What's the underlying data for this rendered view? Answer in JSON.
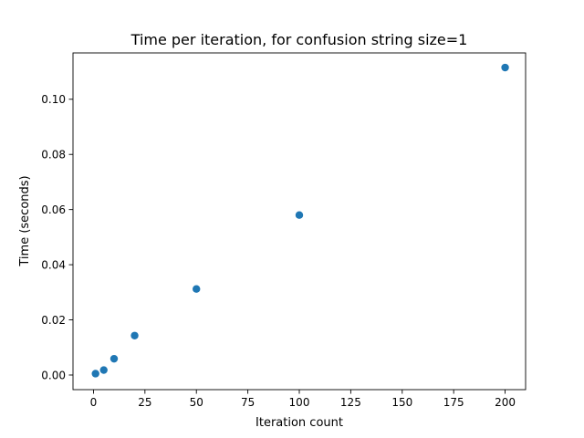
{
  "chart_data": {
    "type": "scatter",
    "title": "Time per iteration, for confusion string size=1",
    "xlabel": "Iteration count",
    "ylabel": "Time (seconds)",
    "xlim": [
      -9.95,
      209.95
    ],
    "ylim": [
      -0.0053,
      0.1168
    ],
    "xticks": [
      0,
      25,
      50,
      75,
      100,
      125,
      150,
      175,
      200
    ],
    "xtick_labels": [
      "0",
      "25",
      "50",
      "75",
      "100",
      "125",
      "150",
      "175",
      "200"
    ],
    "yticks": [
      0.0,
      0.02,
      0.04,
      0.06,
      0.08,
      0.1
    ],
    "ytick_labels": [
      "0.00",
      "0.02",
      "0.04",
      "0.06",
      "0.08",
      "0.10"
    ],
    "grid": false,
    "series": [
      {
        "color": "#1f77b4",
        "x": [
          1,
          5,
          10,
          20,
          50,
          100,
          200
        ],
        "y": [
          0.0005,
          0.0018,
          0.0059,
          0.0143,
          0.0312,
          0.058,
          0.1115
        ]
      }
    ]
  }
}
